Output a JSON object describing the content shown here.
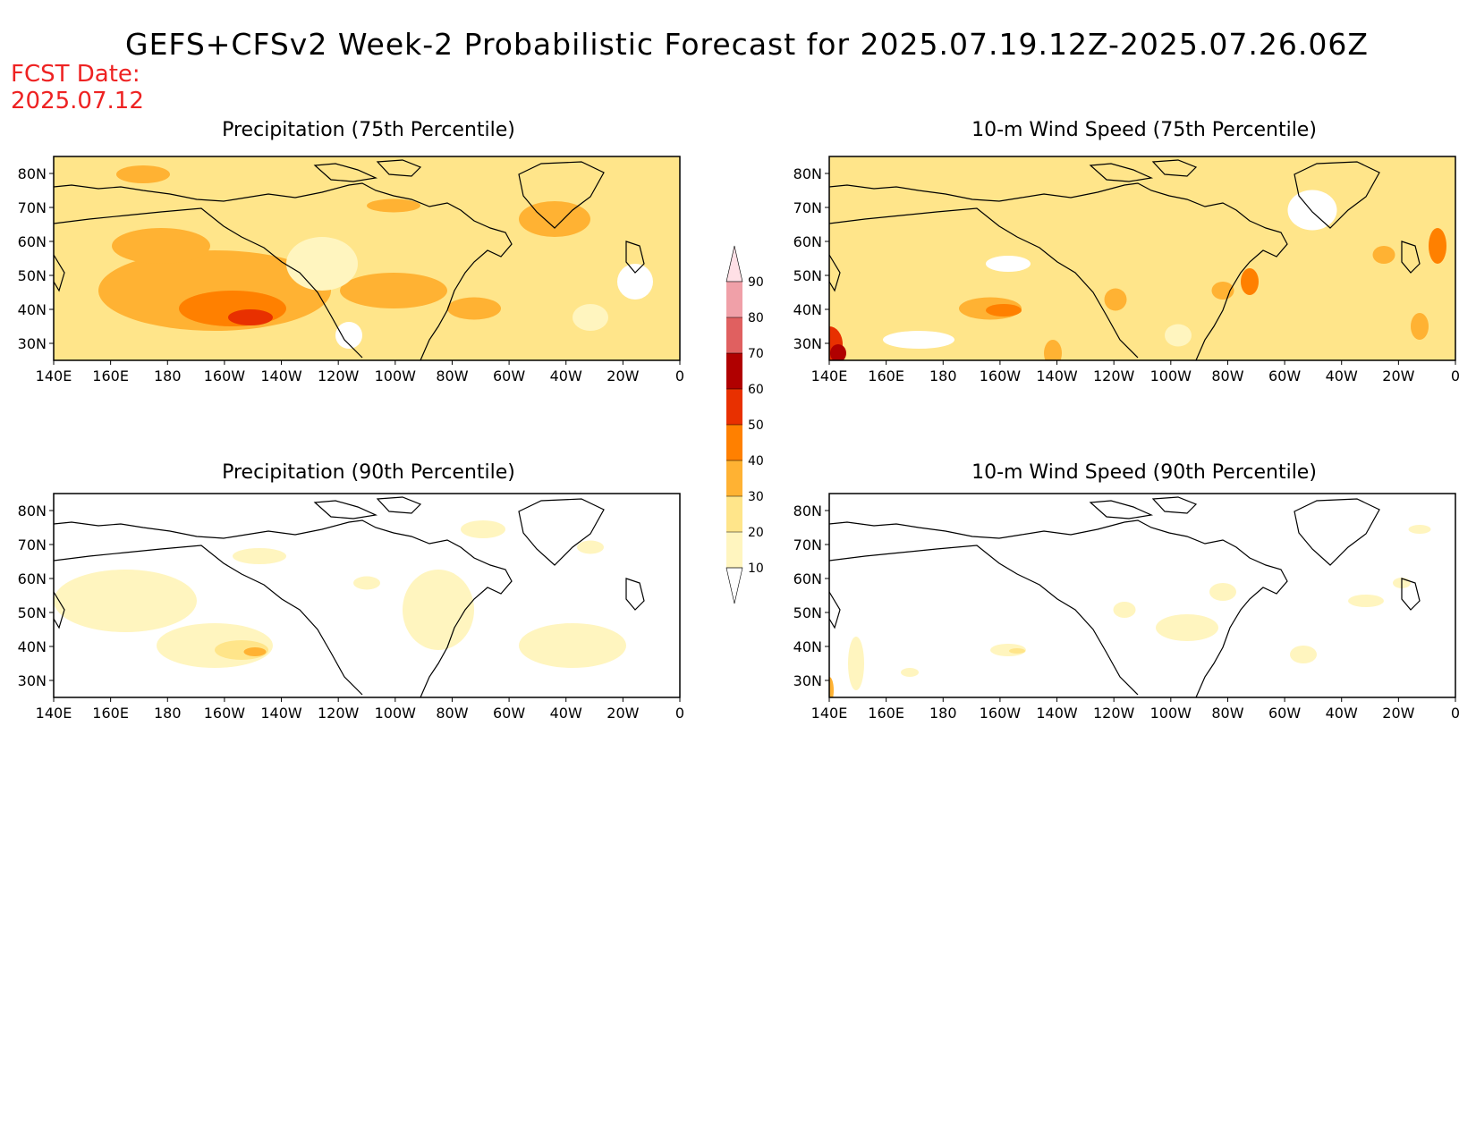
{
  "title": "GEFS+CFSv2 Week-2 Probabilistic Forecast for 2025.07.19.12Z-2025.07.26.06Z",
  "fcst_date": "FCST Date:\n2025.07.12",
  "colors": {
    "land_outline": "#000000",
    "scale": [
      "#ffffff",
      "#fff5bf",
      "#ffe58a",
      "#ffb233",
      "#ff8000",
      "#e83000",
      "#b00000",
      "#e06060",
      "#f0a0a8",
      "#ffe0e6"
    ]
  },
  "colorbar": {
    "levels": [
      "10",
      "20",
      "30",
      "40",
      "50",
      "60",
      "70",
      "80",
      "90"
    ]
  },
  "axes": {
    "lon_labels": [
      "140E",
      "160E",
      "180",
      "160W",
      "140W",
      "120W",
      "100W",
      "80W",
      "60W",
      "40W",
      "20W",
      "0"
    ],
    "lat_labels": [
      "80N",
      "70N",
      "60N",
      "50N",
      "40N",
      "30N"
    ]
  },
  "panels": [
    {
      "id": "precip75",
      "title": "Precipitation (75th Percentile)",
      "level": "high"
    },
    {
      "id": "wind75",
      "title": "10-m Wind Speed (75th Percentile)",
      "level": "medium"
    },
    {
      "id": "precip90",
      "title": "Precipitation (90th Percentile)",
      "level": "low"
    },
    {
      "id": "wind90",
      "title": "10-m Wind Speed (90th Percentile)",
      "level": "verylow"
    }
  ]
}
